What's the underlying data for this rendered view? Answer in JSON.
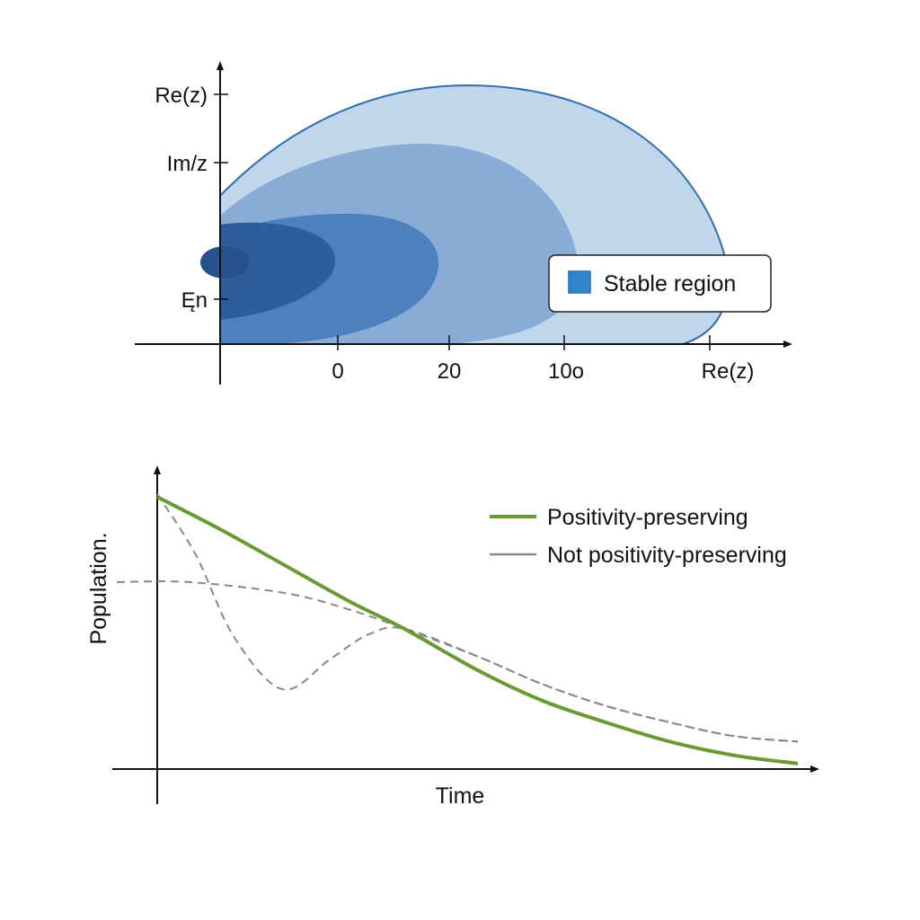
{
  "chart_data": [
    {
      "type": "area",
      "title": "",
      "y_tick_labels": [
        "Re(z)",
        "Im/z",
        "Ęn"
      ],
      "x_tick_labels": [
        "0",
        "20",
        "10o",
        "Re(z)"
      ],
      "regions": [
        "outer",
        "middle",
        "inner",
        "core"
      ],
      "legend": {
        "label": "Stable region",
        "color": "#3185cc",
        "placement": "right"
      },
      "colors": {
        "outer": "#c0d6eb",
        "middle": "#88acd6",
        "inner": "#4d80bf",
        "core": "#2f5c9a",
        "edge": "#2f6db0"
      }
    },
    {
      "type": "line",
      "xlabel": "Time",
      "ylabel": "Population.",
      "xlim": [
        0,
        1
      ],
      "ylim": [
        0,
        1
      ],
      "legend_placement": "top-right",
      "series": [
        {
          "name": "Positivity-preserving",
          "style": "solid",
          "color": "#6a9a32",
          "x": [
            0,
            0.1,
            0.2,
            0.3,
            0.386,
            0.5,
            0.6,
            0.7,
            0.8,
            0.9,
            1.0
          ],
          "y": [
            0.99,
            0.87,
            0.74,
            0.61,
            0.51,
            0.36,
            0.25,
            0.17,
            0.1,
            0.05,
            0.02
          ]
        },
        {
          "name": "Not positivity-preserving",
          "style": "dashed",
          "color": "#888888",
          "x": [
            0,
            0.06,
            0.12,
            0.196,
            0.27,
            0.33,
            0.386,
            0.5,
            0.6,
            0.7,
            0.8,
            0.9,
            1.0
          ],
          "y": [
            1.0,
            0.78,
            0.48,
            0.29,
            0.4,
            0.49,
            0.51,
            0.41,
            0.31,
            0.23,
            0.17,
            0.12,
            0.1
          ]
        },
        {
          "name": "Not positivity-preserving (alt)",
          "style": "dashed",
          "color": "#888888",
          "x": [
            -0.063,
            0.05,
            0.2,
            0.3,
            0.386,
            0.5,
            0.6,
            0.7,
            0.8,
            0.9,
            1.0
          ],
          "y": [
            0.68,
            0.68,
            0.64,
            0.58,
            0.51,
            0.41,
            0.31,
            0.23,
            0.17,
            0.12,
            0.1
          ]
        }
      ]
    }
  ]
}
